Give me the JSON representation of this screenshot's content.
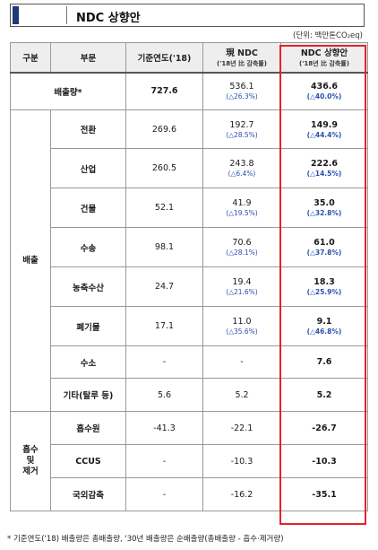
{
  "title": "NDC 상향안",
  "unit": "(단위: 백만톤CO₂eq)",
  "header": {
    "col1": "구분",
    "col2": "부문",
    "col3": "기준연도('18)",
    "col4_main": "現 NDC",
    "col4_sub": "('18년 比 감축률)",
    "col5_main": "NDC 상향안",
    "col5_sub": "('18년 比 감축률)"
  },
  "total_row": {
    "label": "배출량*",
    "base": "727.6",
    "current": "536.1",
    "current_change": "(△26.3%)",
    "proposal": "436.6",
    "proposal_change": "(△40.0%)"
  },
  "emission_group": {
    "label": "배출",
    "rows": [
      {
        "sector": "전환",
        "base": "269.6",
        "current": "192.7",
        "current_change": "(△28.5%)",
        "proposal": "149.9",
        "proposal_change": "(△44.4%)"
      },
      {
        "sector": "산업",
        "base": "260.5",
        "current": "243.8",
        "current_change": "(△6.4%)",
        "proposal": "222.6",
        "proposal_change": "(△14.5%)"
      },
      {
        "sector": "건물",
        "base": "52.1",
        "current": "41.9",
        "current_change": "(△19.5%)",
        "proposal": "35.0",
        "proposal_change": "(△32.8%)"
      },
      {
        "sector": "수송",
        "base": "98.1",
        "current": "70.6",
        "current_change": "(△28.1%)",
        "proposal": "61.0",
        "proposal_change": "(△37.8%)"
      },
      {
        "sector": "농축수산",
        "base": "24.7",
        "current": "19.4",
        "current_change": "(△21.6%)",
        "proposal": "18.3",
        "proposal_change": "(△25.9%)"
      },
      {
        "sector": "폐기물",
        "base": "17.1",
        "current": "11.0",
        "current_change": "(△35.6%)",
        "proposal": "9.1",
        "proposal_change": "(△46.8%)"
      },
      {
        "sector": "수소",
        "base": "-",
        "current": "-",
        "current_change": "",
        "proposal": "7.6",
        "proposal_change": ""
      },
      {
        "sector": "기타(탈루 등)",
        "base": "5.6",
        "current": "5.2",
        "current_change": "",
        "proposal": "5.2",
        "proposal_change": ""
      }
    ]
  },
  "absorption_group": {
    "label_line1": "흡수",
    "label_line2": "및",
    "label_line3": "제거",
    "rows": [
      {
        "sector": "흡수원",
        "base": "-41.3",
        "current": "-22.1",
        "proposal": "-26.7"
      },
      {
        "sector": "CCUS",
        "base": "-",
        "current": "-10.3",
        "proposal": "-10.3"
      },
      {
        "sector": "국외감축",
        "base": "-",
        "current": "-16.2",
        "proposal": "-35.1"
      }
    ]
  },
  "footnote": "* 기준연도('18) 배출량은 총배출량, '30년 배출량은 순배출량(총배출량 - 흡수·제거량)",
  "colors": {
    "highlight_frame": "#e3242b",
    "change_text": "#2a4fb0",
    "title_stripe": "#1f3a78",
    "header_bg": "#eeeeee"
  }
}
